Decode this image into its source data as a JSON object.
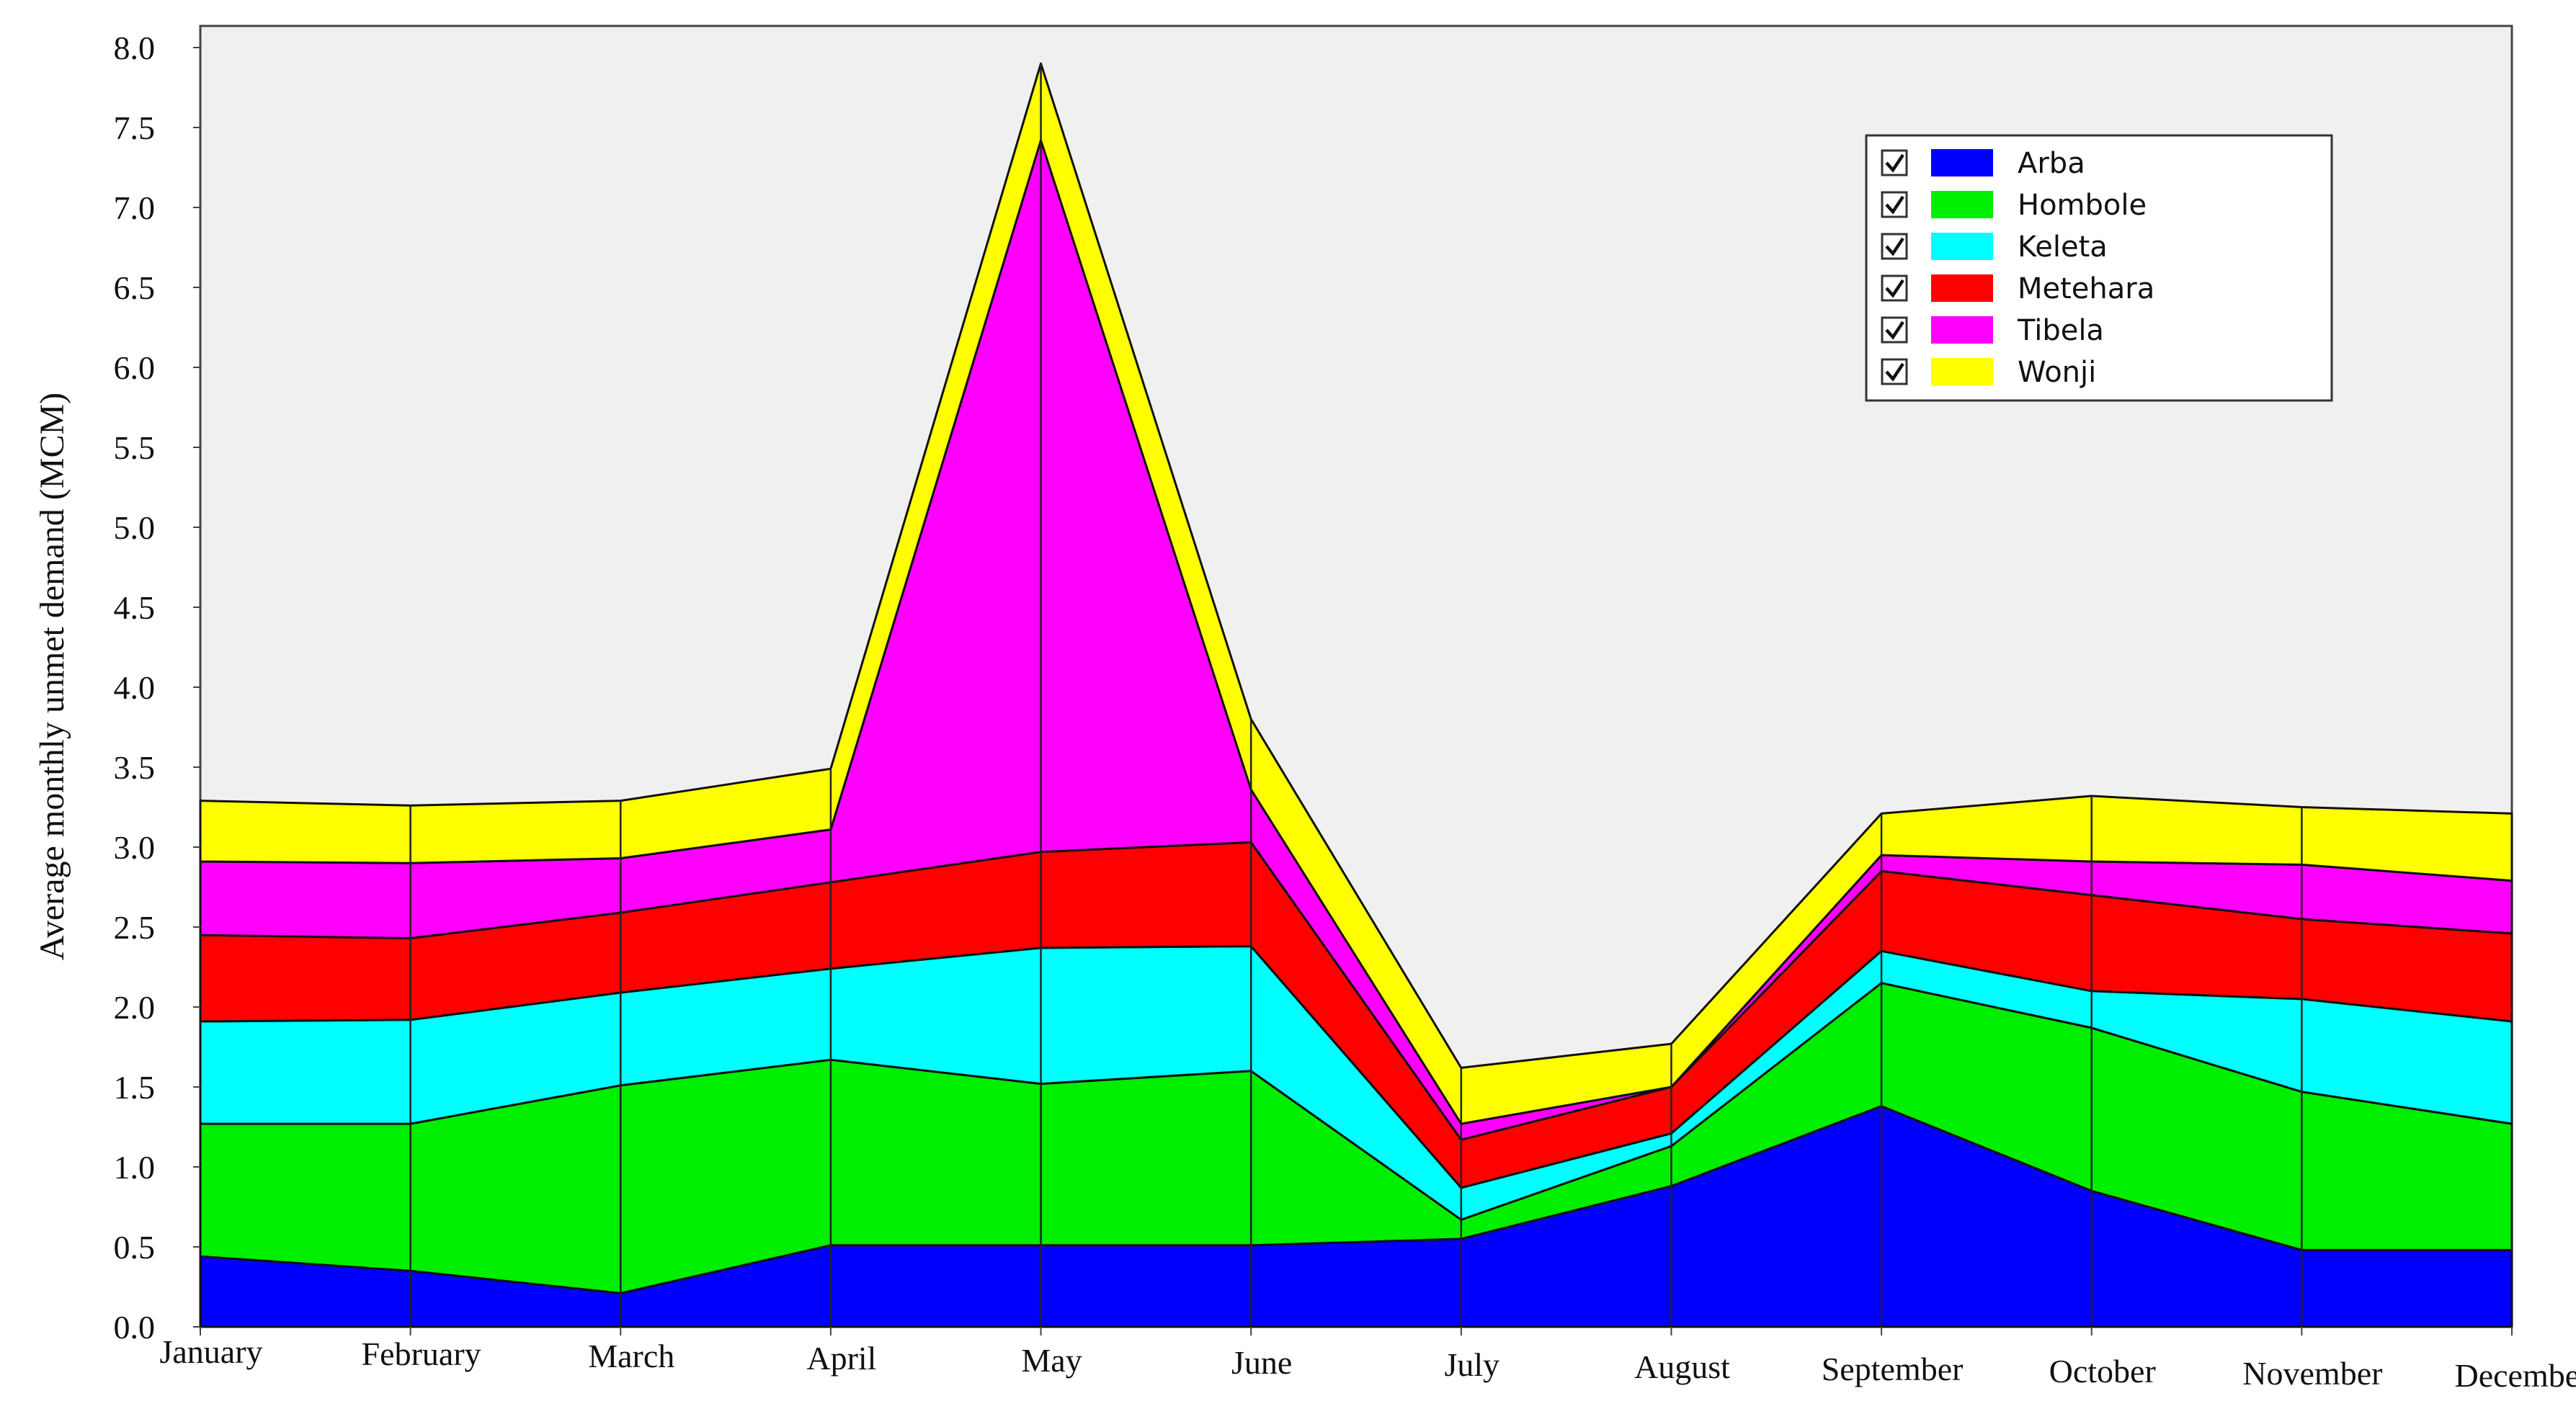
{
  "chart_data": {
    "type": "area",
    "stacked": true,
    "title": "",
    "xlabel": "",
    "ylabel": "Average monthly unmet demand (MCM)",
    "ylim": [
      0,
      8.0
    ],
    "yticks": [
      "0.0",
      "0.5",
      "1.0",
      "1.5",
      "2.0",
      "2.5",
      "3.0",
      "3.5",
      "4.0",
      "4.5",
      "5.0",
      "5.5",
      "6.0",
      "6.5",
      "7.0",
      "7.5",
      "8.0"
    ],
    "categories": [
      "January",
      "February",
      "March",
      "April",
      "May",
      "June",
      "July",
      "August",
      "September",
      "October",
      "November",
      "December"
    ],
    "grid": false,
    "legend_position": "top-right",
    "series": [
      {
        "name": "Arba",
        "color": "#0000ff",
        "values": [
          0.44,
          0.35,
          0.21,
          0.51,
          0.51,
          0.51,
          0.55,
          0.88,
          1.38,
          0.85,
          0.48,
          0.48
        ]
      },
      {
        "name": "Hombole",
        "color": "#00ee00",
        "values": [
          0.83,
          0.92,
          1.3,
          1.16,
          1.01,
          1.09,
          0.12,
          0.25,
          0.77,
          1.02,
          0.99,
          0.79
        ]
      },
      {
        "name": "Keleta",
        "color": "#00ffff",
        "values": [
          0.64,
          0.65,
          0.58,
          0.57,
          0.85,
          0.78,
          0.2,
          0.08,
          0.2,
          0.23,
          0.58,
          0.64
        ]
      },
      {
        "name": "Metehara",
        "color": "#ff0000",
        "values": [
          0.54,
          0.51,
          0.5,
          0.54,
          0.6,
          0.65,
          0.3,
          0.29,
          0.5,
          0.6,
          0.5,
          0.55
        ]
      },
      {
        "name": "Tibela",
        "color": "#ff00ff",
        "values": [
          0.46,
          0.47,
          0.34,
          0.33,
          4.45,
          0.33,
          0.1,
          0.0,
          0.1,
          0.21,
          0.34,
          0.33
        ]
      },
      {
        "name": "Wonji",
        "color": "#ffff00",
        "values": [
          0.38,
          0.36,
          0.36,
          0.38,
          0.48,
          0.44,
          0.35,
          0.27,
          0.26,
          0.41,
          0.36,
          0.42
        ]
      }
    ]
  }
}
